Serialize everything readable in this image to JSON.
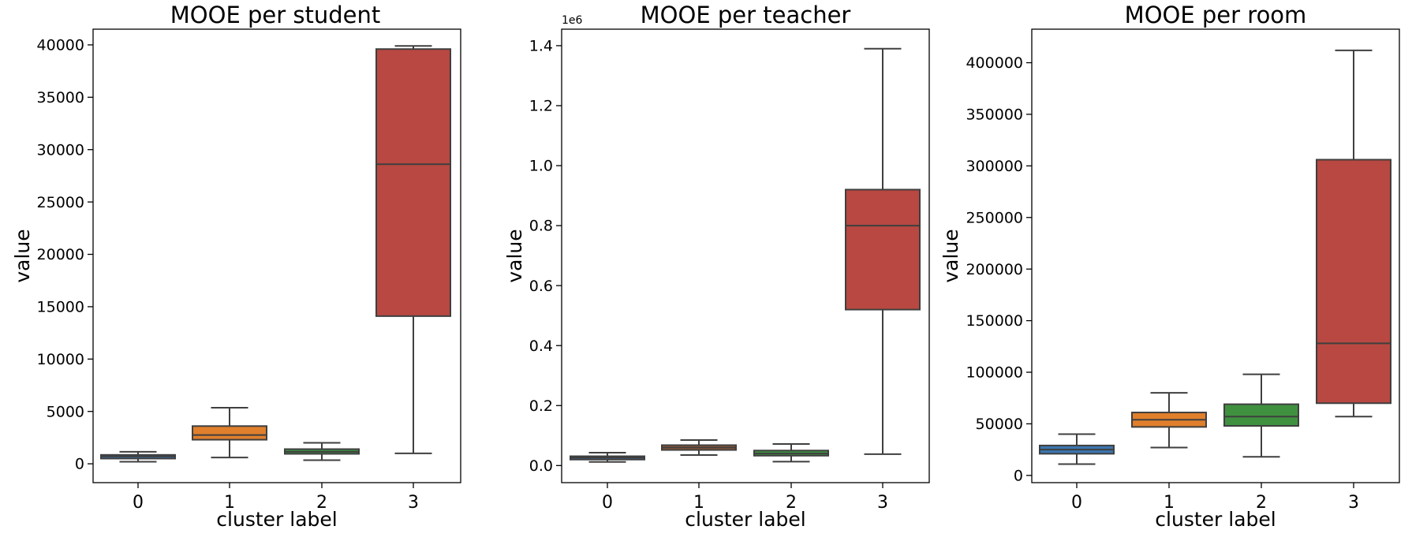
{
  "chart_data": [
    {
      "type": "box",
      "title": "MOOE per student",
      "xlabel": "cluster label",
      "ylabel": "value",
      "offset_label": "",
      "categories": [
        "0",
        "1",
        "2",
        "3"
      ],
      "ylim": [
        -1800,
        41500
      ],
      "yticks": [
        0,
        5000,
        10000,
        15000,
        20000,
        25000,
        30000,
        35000,
        40000
      ],
      "ytick_labels": [
        "0",
        "5000",
        "10000",
        "15000",
        "20000",
        "25000",
        "30000",
        "35000",
        "40000"
      ],
      "boxes": [
        {
          "category": "0",
          "whisker_low": 200,
          "q1": 500,
          "median": 700,
          "q3": 850,
          "whisker_high": 1150
        },
        {
          "category": "1",
          "whisker_low": 600,
          "q1": 2300,
          "median": 2750,
          "q3": 3600,
          "whisker_high": 5350
        },
        {
          "category": "2",
          "whisker_low": 350,
          "q1": 950,
          "median": 1150,
          "q3": 1400,
          "whisker_high": 2000
        },
        {
          "category": "3",
          "whisker_low": 1000,
          "q1": 14100,
          "median": 28600,
          "q3": 39600,
          "whisker_high": 39900
        }
      ]
    },
    {
      "type": "box",
      "title": "MOOE per teacher",
      "xlabel": "cluster label",
      "ylabel": "value",
      "offset_label": "1e6",
      "categories": [
        "0",
        "1",
        "2",
        "3"
      ],
      "ylim": [
        -0.057,
        1.455
      ],
      "yticks": [
        0.0,
        0.2,
        0.4,
        0.6,
        0.8,
        1.0,
        1.2,
        1.4
      ],
      "ytick_labels": [
        "0.0",
        "0.2",
        "0.4",
        "0.6",
        "0.8",
        "1.0",
        "1.2",
        "1.4"
      ],
      "boxes": [
        {
          "category": "0",
          "whisker_low": 0.012,
          "q1": 0.02,
          "median": 0.026,
          "q3": 0.031,
          "whisker_high": 0.043
        },
        {
          "category": "1",
          "whisker_low": 0.035,
          "q1": 0.052,
          "median": 0.06,
          "q3": 0.068,
          "whisker_high": 0.085
        },
        {
          "category": "2",
          "whisker_low": 0.013,
          "q1": 0.033,
          "median": 0.04,
          "q3": 0.05,
          "whisker_high": 0.072
        },
        {
          "category": "3",
          "whisker_low": 0.038,
          "q1": 0.52,
          "median": 0.8,
          "q3": 0.92,
          "whisker_high": 1.39
        }
      ]
    },
    {
      "type": "box",
      "title": "MOOE per room",
      "xlabel": "cluster label",
      "ylabel": "value",
      "offset_label": "",
      "categories": [
        "0",
        "1",
        "2",
        "3"
      ],
      "ylim": [
        -7000,
        432500
      ],
      "yticks": [
        0,
        50000,
        100000,
        150000,
        200000,
        250000,
        300000,
        350000,
        400000
      ],
      "ytick_labels": [
        "0",
        "50000",
        "100000",
        "150000",
        "200000",
        "250000",
        "300000",
        "350000",
        "400000"
      ],
      "boxes": [
        {
          "category": "0",
          "whisker_low": 11000,
          "q1": 21000,
          "median": 25000,
          "q3": 29000,
          "whisker_high": 40000
        },
        {
          "category": "1",
          "whisker_low": 27000,
          "q1": 47000,
          "median": 54000,
          "q3": 61000,
          "whisker_high": 80000
        },
        {
          "category": "2",
          "whisker_low": 18000,
          "q1": 48000,
          "median": 57000,
          "q3": 69000,
          "whisker_high": 98000
        },
        {
          "category": "3",
          "whisker_low": 57000,
          "q1": 70000,
          "median": 128000,
          "q3": 306000,
          "whisker_high": 412000
        }
      ]
    }
  ],
  "colors": {
    "student": [
      "#3b75af",
      "#e07f2c",
      "#3f9140",
      "#b84841"
    ],
    "teacher": [
      "#3b75af",
      "#9a5a35",
      "#3f9140",
      "#b84841"
    ],
    "room": [
      "#3b75af",
      "#e07f2c",
      "#3f9140",
      "#b84841"
    ],
    "line": "#3f3f3f"
  }
}
